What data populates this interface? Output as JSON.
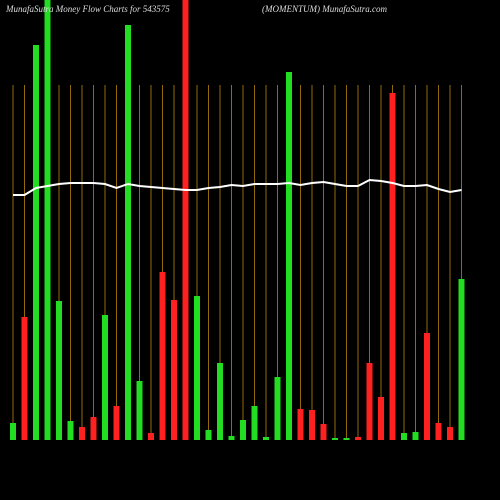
{
  "chart_data": {
    "type": "bar",
    "title": "MunafaSutra  Money Flow  Charts for 543575",
    "subtitle": "(MOMENTUM) MunafaSutra.com",
    "ylim": [
      0,
      440
    ],
    "series": [
      {
        "colors": [
          "#22dd22",
          "#ff2020",
          "#22dd22",
          "#22dd22",
          "#22dd22",
          "#22dd22",
          "#ff2020",
          "#ff2020",
          "#22dd22",
          "#ff2020",
          "#22dd22",
          "#22dd22",
          "#ff2020",
          "#ff2020",
          "#ff2020",
          "#ff2020",
          "#22dd22",
          "#22dd22",
          "#22dd22",
          "#22dd22",
          "#22dd22",
          "#22dd22",
          "#22dd22",
          "#22dd22",
          "#22dd22",
          "#ff2020",
          "#ff2020",
          "#ff2020",
          "#22dd22",
          "#22dd22",
          "#ff2020",
          "#ff2020",
          "#ff2020",
          "#ff2020",
          "#22dd22",
          "#22dd22",
          "#ff2020",
          "#ff2020",
          "#ff2020",
          "#22dd22"
        ],
        "values": [
          17,
          123,
          395,
          440,
          139,
          19,
          13,
          23,
          125,
          34,
          415,
          59,
          7,
          168,
          140,
          440,
          144,
          10,
          77,
          4,
          20,
          34,
          3,
          63,
          368,
          31,
          30,
          16,
          2,
          2,
          3,
          77,
          43,
          347,
          7,
          8,
          107,
          17,
          13,
          161
        ]
      },
      {
        "type": "line",
        "color": "#ffffff",
        "values": [
          245,
          245,
          252,
          254,
          256,
          257,
          257,
          257,
          256,
          252,
          256,
          254,
          253,
          252,
          251,
          250,
          250,
          252,
          253,
          255,
          254,
          256,
          256,
          256,
          257,
          255,
          257,
          258,
          256,
          254,
          254,
          260,
          259,
          257,
          254,
          254,
          255,
          251,
          248,
          250
        ]
      }
    ]
  }
}
